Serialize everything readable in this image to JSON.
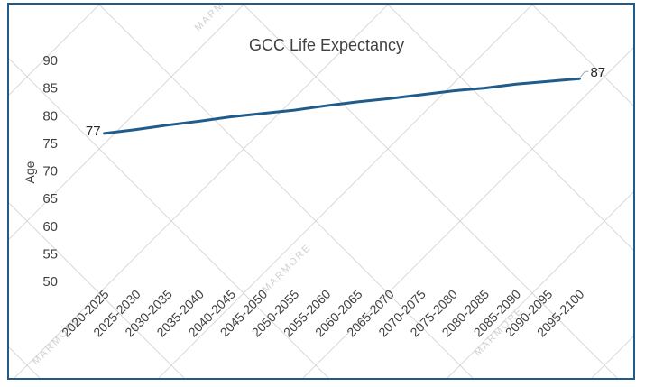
{
  "chart_data": {
    "type": "line",
    "title": "GCC Life Expectancy",
    "xlabel": "",
    "ylabel": "Age",
    "ylim": [
      50,
      90
    ],
    "yticks": [
      90,
      85,
      80,
      75,
      70,
      65,
      60,
      55,
      50
    ],
    "grid": false,
    "legend": "none",
    "categories": [
      "2020-2025",
      "2025-2030",
      "2030-2035",
      "2035-2040",
      "2040-2045",
      "2045-2050",
      "2050-2055",
      "2055-2060",
      "2060-2065",
      "2065-2070",
      "2070-2075",
      "2075-2080",
      "2080-2085",
      "2085-2090",
      "2090-2095",
      "2095-2100"
    ],
    "series": [
      {
        "values": [
          76.8,
          77.5,
          78.3,
          79.0,
          79.8,
          80.4,
          81.0,
          81.8,
          82.5,
          83.1,
          83.8,
          84.5,
          85.0,
          85.7,
          86.2,
          86.7
        ],
        "color": "#1f5c8b"
      }
    ],
    "data_labels": [
      {
        "index": 0,
        "text": "77"
      },
      {
        "index": 15,
        "text": "87"
      }
    ]
  },
  "watermark": {
    "text": "MARMORE",
    "color": "#d0d0d0"
  },
  "colors": {
    "border": "#1f5c8b",
    "line": "#1f5c8b",
    "text": "#404040"
  }
}
